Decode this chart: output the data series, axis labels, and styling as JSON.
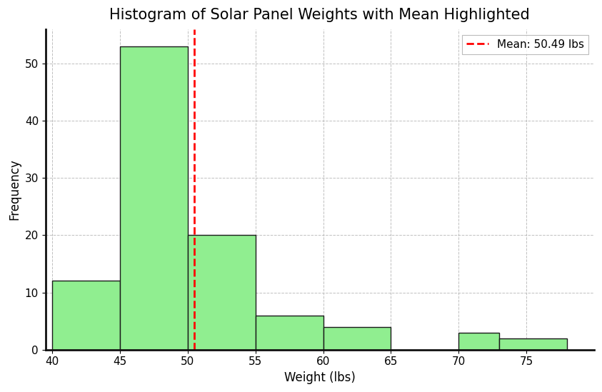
{
  "title": "Histogram of Solar Panel Weights with Mean Highlighted",
  "xlabel": "Weight (lbs)",
  "ylabel": "Frequency",
  "mean_value": 50.49,
  "mean_label": "Mean: 50.49 lbs",
  "bar_edges": [
    40,
    45,
    50,
    55,
    60,
    65,
    70,
    73,
    78
  ],
  "bar_heights": [
    12,
    53,
    20,
    6,
    4,
    0,
    3,
    2
  ],
  "bar_color": "#90EE90",
  "bar_edge_color": "#1a1a1a",
  "mean_line_color": "red",
  "grid_color": "#b0b0b0",
  "xlim": [
    39.5,
    80
  ],
  "ylim": [
    0,
    56
  ],
  "xticks": [
    40,
    45,
    50,
    55,
    60,
    65,
    70,
    75
  ],
  "yticks": [
    0,
    10,
    20,
    30,
    40,
    50
  ],
  "title_fontsize": 15,
  "label_fontsize": 12,
  "tick_fontsize": 11
}
